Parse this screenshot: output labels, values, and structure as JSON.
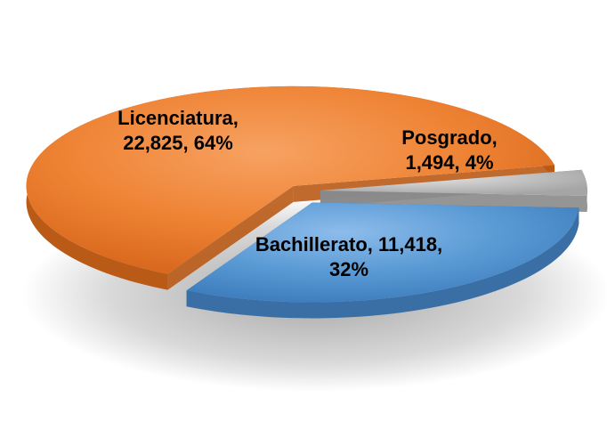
{
  "chart_data": {
    "type": "pie",
    "style": "3d-exploded",
    "title": "",
    "legend": "none",
    "slices": [
      {
        "category": "Licenciatura",
        "value": 22825,
        "percent": 64,
        "color": "#ED7D31",
        "label_lines": [
          "Licenciatura,",
          "22,825, 64%"
        ]
      },
      {
        "category": "Posgrado",
        "value": 1494,
        "percent": 4,
        "color": "#A5A5A5",
        "label_lines": [
          "Posgrado,",
          "1,494, 4%"
        ]
      },
      {
        "category": "Bachillerato",
        "value": 11418,
        "percent": 32,
        "color": "#5B9BD5",
        "label_lines": [
          "Bachillerato, 11,418,",
          "32%"
        ]
      }
    ]
  }
}
